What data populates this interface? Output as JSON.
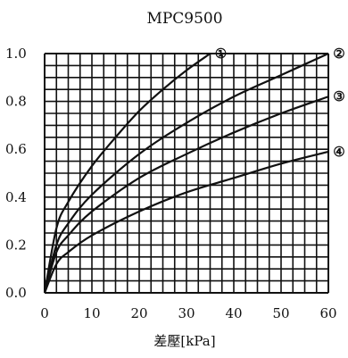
{
  "chart_data": {
    "type": "line",
    "title": "MPC9500",
    "xlabel": "差壓[kPa]",
    "ylabel": "",
    "xlim": [
      0,
      60
    ],
    "ylim": [
      0,
      1.0
    ],
    "x_ticks": [
      "0",
      "10",
      "20",
      "30",
      "40",
      "50",
      "60"
    ],
    "y_ticks": [
      "0.0",
      "0.2",
      "0.4",
      "0.6",
      "0.8",
      "1.0"
    ],
    "grid": true,
    "series": [
      {
        "name": "①",
        "x": [
          0,
          2.5,
          5,
          10,
          15,
          20,
          25,
          30,
          35
        ],
        "y": [
          0,
          0.27,
          0.38,
          0.53,
          0.65,
          0.76,
          0.85,
          0.93,
          1.0
        ]
      },
      {
        "name": "②",
        "x": [
          0,
          2.5,
          5,
          10,
          20,
          30,
          40,
          50,
          60
        ],
        "y": [
          0,
          0.2,
          0.29,
          0.41,
          0.58,
          0.71,
          0.82,
          0.91,
          1.0
        ]
      },
      {
        "name": "③",
        "x": [
          0,
          2.5,
          5,
          10,
          20,
          30,
          40,
          50,
          60
        ],
        "y": [
          0,
          0.17,
          0.24,
          0.34,
          0.48,
          0.58,
          0.67,
          0.75,
          0.82
        ]
      },
      {
        "name": "④",
        "x": [
          0,
          2.5,
          5,
          10,
          20,
          30,
          40,
          50,
          60
        ],
        "y": [
          0,
          0.12,
          0.17,
          0.24,
          0.34,
          0.42,
          0.48,
          0.54,
          0.59
        ]
      }
    ]
  }
}
